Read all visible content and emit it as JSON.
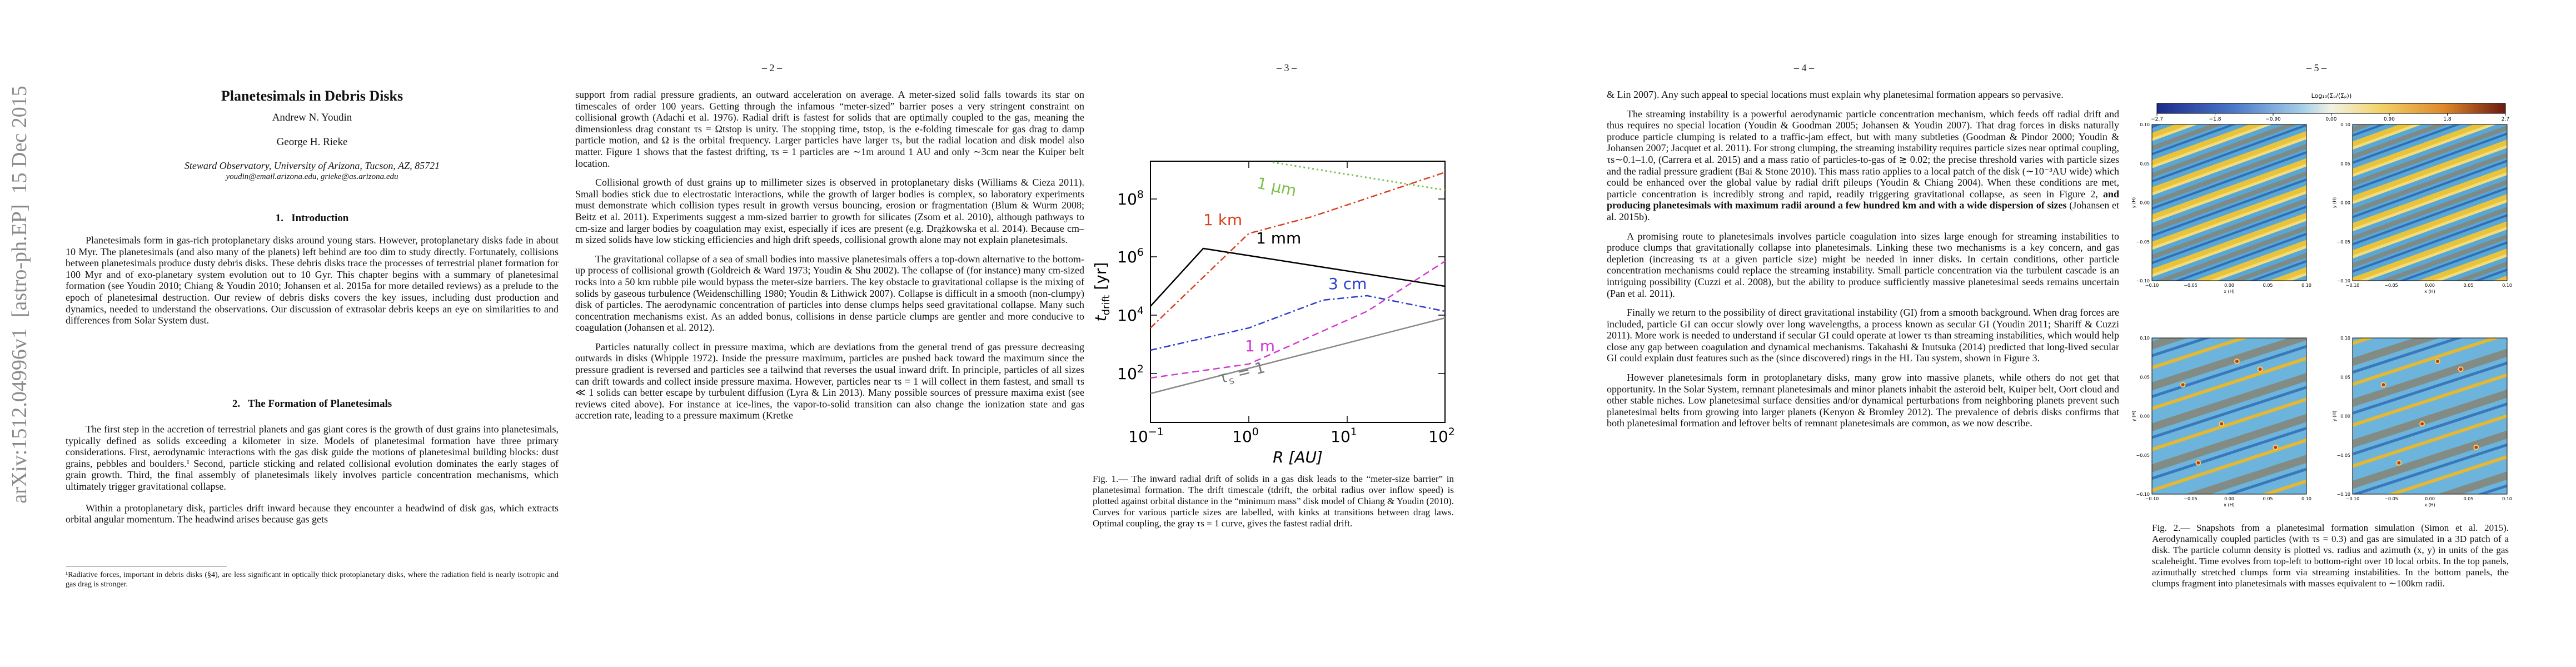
{
  "arxiv_stamp": "arXiv:1512.04996v1  [astro-ph.EP]  15 Dec 2015",
  "pages": [
    {
      "title": "Planetesimals in Debris Disks",
      "authors": [
        "Andrew N. Youdin",
        "George H. Rieke"
      ],
      "affiliation": "Steward Observatory, University of Arizona, Tucson, AZ, 85721",
      "emails": "youdin@email.arizona.edu, grieke@as.arizona.edu",
      "sections": [
        {
          "heading": "1.   Introduction",
          "paragraphs": [
            "Planetesimals form in gas-rich protoplanetary disks around young stars. However, protoplanetary disks fade in about 10 Myr. The planetesimals (and also many of the planets) left behind are too dim to study directly. Fortunately, collisions between planetesimals produce dusty debris disks. These debris disks trace the processes of terrestrial planet formation for 100 Myr and of exo-planetary system evolution out to 10 Gyr. This chapter begins with a summary of planetesimal formation (see Youdin 2010; Chiang & Youdin 2010; Johansen et al. 2015a for more detailed reviews) as a prelude to the epoch of planetesimal destruction. Our review of debris disks covers the key issues, including dust production and dynamics, needed to understand the observations. Our discussion of extrasolar debris keeps an eye on similarities to and differences from Solar System dust."
          ]
        },
        {
          "heading": "2.   The Formation of Planetesimals",
          "paragraphs": [
            "The first step in the accretion of terrestrial planets and gas giant cores is the growth of dust grains into planetesimals, typically defined as solids exceeding a kilometer in size. Models of planetesimal formation have three primary considerations. First, aerodynamic interactions with the gas disk guide the motions of planetesimal building blocks: dust grains, pebbles and boulders.¹ Second, particle sticking and related collisional evolution dominates the early stages of grain growth. Third, the final assembly of planetesimals likely involves particle concentration mechanisms, which ultimately trigger gravitational collapse.",
            "Within a protoplanetary disk, particles drift inward because they encounter a headwind of disk gas, which extracts orbital angular momentum. The headwind arises because gas gets"
          ]
        }
      ],
      "footnote": "¹Radiative forces, important in debris disks (§4), are less significant in optically thick protoplanetary disks, where the radiation field is nearly isotropic and gas drag is stronger."
    },
    {
      "header": "– 2 –",
      "paragraphs": [
        "support from radial pressure gradients, an outward acceleration on average. A meter-sized solid falls towards its star on timescales of order 100 years. Getting through the infamous “meter-sized” barrier poses a very stringent constraint on collisional growth (Adachi et al. 1976). Radial drift is fastest for solids that are optimally coupled to the gas, meaning the dimensionless drag constant τs = Ωtstop is unity. The stopping time, tstop, is the e-folding timescale for gas drag to damp particle motion, and Ω is the orbital frequency. Larger particles have larger τs, but the radial location and disk model also matter. Figure 1 shows that the fastest drifting, τs = 1 particles are ∼1m around 1 AU and only ∼3cm near the Kuiper belt location.",
        "Collisional growth of dust grains up to millimeter sizes is observed in protoplanetary disks (Williams & Cieza 2011). Small bodies stick due to electrostatic interactions, while the growth of larger bodies is complex, so laboratory experiments must demonstrate which collision types result in growth versus bouncing, erosion or fragmentation (Blum & Wurm 2008; Beitz et al. 2011). Experiments suggest a mm-sized barrier to growth for silicates (Zsom et al. 2010), although pathways to cm-size and larger bodies by coagulation may exist, especially if ices are present (e.g. Drążkowska et al. 2014). Because cm–m sized solids have low sticking efficiencies and high drift speeds, collisional growth alone may not explain planetesimals.",
        "The gravitational collapse of a sea of small bodies into massive planetesimals offers a top-down alternative to the bottom-up process of collisional growth (Goldreich & Ward 1973; Youdin & Shu 2002). The collapse of (for instance) many cm-sized rocks into a 50 km rubble pile would bypass the meter-size barriers. The key obstacle to gravitational collapse is the mixing of solids by gaseous turbulence (Weidenschilling 1980; Youdin & Lithwick 2007). Collapse is difficult in a smooth (non-clumpy) disk of particles. The aerodynamic concentration of particles into dense clumps helps seed gravitational collapse. Many such concentration mechanisms exist. As an added bonus, collisions in dense particle clumps are gentler and more conducive to coagulation (Johansen et al. 2012).",
        "Particles naturally collect in pressure maxima, which are deviations from the general trend of gas pressure decreasing outwards in disks (Whipple 1972). Inside the pressure maximum, particles are pushed back toward the maximum since the pressure gradient is reversed and particles see a tailwind that reverses the usual inward drift. In principle, particles of all sizes can drift towards and collect inside pressure maxima. However, particles near τs = 1 will collect in them fastest, and small τs ≪ 1 solids can better escape by turbulent diffusion (Lyra & Lin 2013). Many possible sources of pressure maxima exist (see reviews cited above). For instance at ice-lines, the vapor-to-solid transition can also change the ionization state and gas accretion rate, leading to a pressure maximum (Kretke"
      ]
    },
    {
      "header": "– 3 –",
      "figure": {
        "x_ticks": [
          {
            "base": "10",
            "exp": "−1"
          },
          {
            "base": "10",
            "exp": "0"
          },
          {
            "base": "10",
            "exp": "1"
          },
          {
            "base": "10",
            "exp": "2"
          }
        ],
        "y_ticks": [
          {
            "base": "10",
            "exp": "2"
          },
          {
            "base": "10",
            "exp": "4"
          },
          {
            "base": "10",
            "exp": "6"
          },
          {
            "base": "10",
            "exp": "8"
          }
        ],
        "x_label": "R [AU]",
        "y_label": {
          "main": "t",
          "sub": "drift",
          "unit": " [yr]"
        },
        "curve_labels": [
          "1 μm",
          "1 km",
          "1 mm",
          "3 cm",
          "1 m"
        ],
        "tau_label": {
          "main": "τ",
          "sub": "s",
          "rest": " = 1"
        }
      },
      "caption": "Fig. 1.— The inward radial drift of solids in a gas disk leads to the “meter-size barrier” in planetesimal formation. The drift timescale (tdrift, the orbital radius over inflow speed) is plotted against orbital distance in the “minimum mass” disk model of Chiang & Youdin (2010). Curves for various particle sizes are labelled, with kinks at transitions between drag laws. Optimal coupling, the gray τs = 1 curve, gives the fastest radial drift."
    },
    {
      "header": "– 4 –",
      "paragraphs": [
        "& Lin 2007). Any such appeal to special locations must explain why planetesimal formation appears so pervasive.",
        {
          "parts": [
            "The streaming instability is a powerful aerodynamic particle concentration mechanism, which feeds off radial drift and thus requires no special location (Youdin & Goodman 2005; Johansen & Youdin 2007). That drag forces in disks naturally produce particle clumping is related to a traffic-jam effect, but with many subtleties (Goodman & Pindor 2000; Youdin & Johansen 2007; Jacquet et al. 2011). For strong clumping, the streaming instability requires particle sizes near optimal coupling, τs∼0.1–1.0, (Carrera et al. 2015) and a mass ratio of particles-to-gas of ≳ 0.02; the precise threshold varies with particle sizes and the radial pressure gradient (Bai & Stone 2010). This mass ratio applies to a local patch of the disk (∼10⁻³AU wide) which could be enhanced over the global value by radial drift pileups (Youdin & Chiang 2004). When these conditions are met, particle concentration is incredibly strong and rapid, readily triggering gravitational collapse, as seen in Figure 2, ",
            "and producing planetesimals with maximum radii around a few hundred km and with a wide dispersion of sizes",
            " (Johansen et al. 2015b)."
          ]
        },
        "A promising route to planetesimals involves particle coagulation into sizes large enough for streaming instabilities to produce clumps that gravitationally collapse into planetesimals. Linking these two mechanisms is a key concern, and gas depletion (increasing τs at a given particle size) might be needed in inner disks. In certain conditions, other particle concentration mechanisms could replace the streaming instability. Small particle concentration via the turbulent cascade is an intriguing possibility (Cuzzi et al. 2008), but the ability to produce sufficiently massive planetesimal seeds remains uncertain (Pan et al. 2011).",
        "Finally we return to the possibility of direct gravitational instability (GI) from a smooth background. When drag forces are included, particle GI can occur slowly over long wavelengths, a process known as secular GI (Youdin 2011; Shariff & Cuzzi 2011). More work is needed to understand if secular GI could operate at lower τs than streaming instabilities, which would help close any gap between coagulation and dynamical mechanisms. Takahashi & Inutsuka (2014) predicted that long-lived secular GI could explain dust features such as the (since discovered) rings in the HL Tau system, shown in Figure 3.",
        "However planetesimals form in protoplanetary disks, many grow into massive planets, while others do not get that opportunity. In the Solar System, remnant planetesimals and minor planets inhabit the asteroid belt, Kuiper belt, Oort cloud and other stable niches. Low planetesimal surface densities and/or dynamical perturbations from neighboring planets prevent such planetesimal belts from growing into larger planets (Kenyon & Bromley 2012). The prevalence of debris disks confirms that both planetesimal formation and leftover belts of remnant planetesimals are common, as we now describe."
      ]
    },
    {
      "header": "– 5 –",
      "colorbar": {
        "label": "Log₁₀(Σₚ/⟨Σₚ⟩)",
        "ticks": [
          "−2.7",
          "−1.8",
          "−0.90",
          "0.00",
          "0.90",
          "1.8",
          "2.7"
        ]
      },
      "panel_axes": {
        "x_ticks": [
          "−0.10",
          "−0.05",
          "0.00",
          "0.05",
          "0.10"
        ],
        "y_ticks": [
          "0.10",
          "0.05",
          "0.00",
          "−0.05",
          "−0.10"
        ],
        "x_label": "x (H)",
        "y_label": "y (H)"
      },
      "caption": "Fig. 2.— Snapshots from a planetesimal formation simulation (Simon et al. 2015). Aerodynamically coupled particles (with τs = 0.3) and gas are simulated in a 3D patch of a disk. The particle column density is plotted vs. radius and azimuth (x, y) in units of the gas scaleheight. Time evolves from top-left to bottom-right over 10 local orbits. In the top panels, azimuthally stretched clumps form via streaming instabilities. In the bottom panels, the clumps fragment into planetesimals with masses equivalent to ∼100km radii."
    }
  ]
}
